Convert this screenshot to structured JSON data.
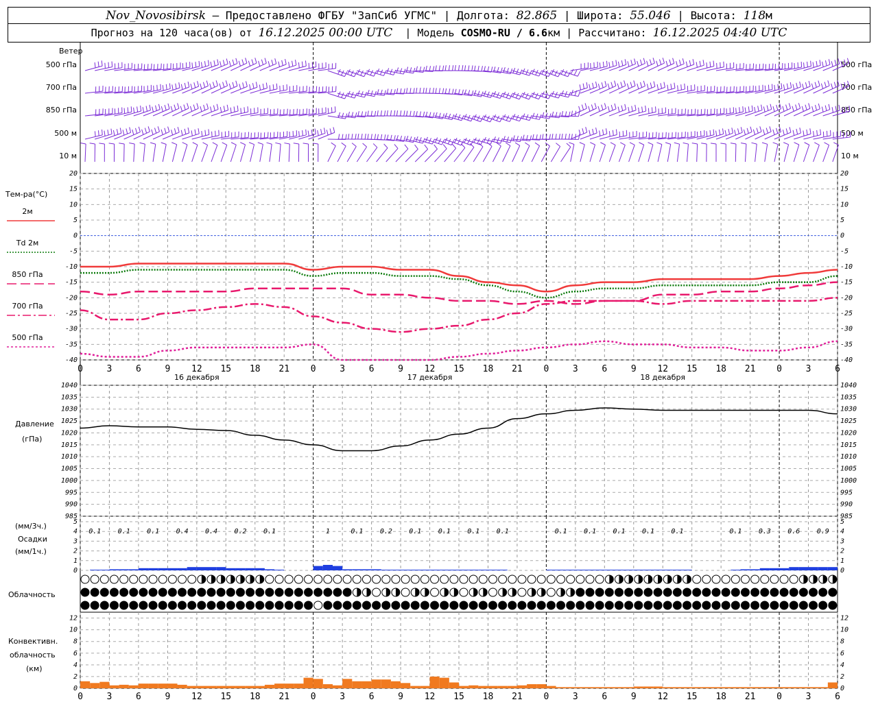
{
  "header": {
    "station": "Nov_Novosibirsk",
    "provider": "– Предоставлено ФГБУ \"ЗапСиб УГМС\"",
    "lon_label": "Долгота:",
    "lon_value": "82.865",
    "lat_label": "Широта:",
    "lat_value": "55.046",
    "alt_label": "Высота:",
    "alt_value": "118",
    "alt_unit": "м",
    "forecast_label": "Прогноз на 120 часа(ов) от",
    "forecast_from": "16.12.2025 00:00 UTC",
    "model_label": "Модель",
    "model_value": "COSMO-RU / 6.6",
    "model_unit": "км",
    "calc_label": "Рассчитано:",
    "calc_value": "16.12.2025 04:40 UTC"
  },
  "labels": {
    "wind": "Ветер",
    "wind_levels": [
      "500 гПа",
      "700 гПа",
      "850 гПа",
      "500 м",
      "10  м"
    ],
    "temp": "Тем-ра(°С)",
    "pressure": "Давление",
    "pressure_unit": "(гПа)",
    "precip_3h": "(мм/3ч.)",
    "precip": "Осадки",
    "precip_1h": "(мм/1ч.)",
    "cloud": "Облачность",
    "conv1": "Конвективн.",
    "conv2": "облачность",
    "conv3": "(км)"
  },
  "colors": {
    "wind": "#7b2bd6",
    "t2m": "#f03a3a",
    "td2m": "#0a7a0a",
    "t850": "#e8186c",
    "t700": "#e8186c",
    "t500": "#e0209a",
    "zero_line": "#3a5adf",
    "pressure": "#000000",
    "precip": "#1f3fe0",
    "conv": "#f07a20"
  },
  "chart_data": [
    {
      "type": "line",
      "name": "temperature",
      "x": [
        0,
        3,
        6,
        9,
        12,
        15,
        18,
        21,
        24,
        27,
        30,
        33,
        36,
        39,
        42,
        45,
        48,
        51,
        54,
        57,
        60,
        63,
        66,
        69,
        72,
        75,
        78
      ],
      "ylim": [
        -40,
        20
      ],
      "yticks": [
        20,
        15,
        10,
        5,
        0,
        -5,
        -10,
        -15,
        -20,
        -25,
        -30,
        -35,
        -40
      ],
      "series": [
        {
          "name": "2м",
          "style": "solid",
          "values": [
            -10,
            -10,
            -9,
            -9,
            -9,
            -9,
            -9,
            -9,
            -11,
            -10,
            -10,
            -11,
            -11,
            -13,
            -15,
            -16,
            -18,
            -16,
            -15,
            -15,
            -14,
            -14,
            -14,
            -14,
            -13,
            -12,
            -11
          ]
        },
        {
          "name": "Td  2м",
          "style": "dotted",
          "values": [
            -12,
            -12,
            -11,
            -11,
            -11,
            -11,
            -11,
            -11,
            -13,
            -12,
            -12,
            -13,
            -13,
            -14,
            -16,
            -18,
            -20,
            -18,
            -17,
            -17,
            -16,
            -16,
            -16,
            -16,
            -15,
            -15,
            -13
          ]
        },
        {
          "name": "850 гПа",
          "style": "dashed",
          "values": [
            -18,
            -19,
            -18,
            -18,
            -18,
            -18,
            -17,
            -17,
            -17,
            -17,
            -19,
            -19,
            -20,
            -21,
            -21,
            -22,
            -21,
            -22,
            -21,
            -21,
            -19,
            -19,
            -18,
            -18,
            -17,
            -16,
            -15
          ]
        },
        {
          "name": "700 гПа",
          "style": "dashdot",
          "values": [
            -24,
            -27,
            -27,
            -25,
            -24,
            -23,
            -22,
            -23,
            -26,
            -28,
            -30,
            -31,
            -30,
            -29,
            -27,
            -25,
            -22,
            -21,
            -21,
            -21,
            -22,
            -21,
            -21,
            -21,
            -21,
            -21,
            -20
          ]
        },
        {
          "name": "500 гПа",
          "style": "shortdash",
          "values": [
            -38,
            -39,
            -39,
            -37,
            -36,
            -36,
            -36,
            -36,
            -35,
            -40,
            -41,
            -42,
            -41,
            -39,
            -38,
            -37,
            -36,
            -35,
            -34,
            -35,
            -35,
            -36,
            -36,
            -37,
            -37,
            -36,
            -34
          ]
        }
      ],
      "xticks": [
        "0",
        "3",
        "6",
        "9",
        "12",
        "15",
        "18",
        "21",
        "0",
        "3",
        "6",
        "9",
        "12",
        "15",
        "18",
        "21",
        "0",
        "3",
        "6",
        "9",
        "12",
        "15",
        "18",
        "21",
        "0",
        "3",
        "6"
      ],
      "days": [
        "16 декабря",
        "17 декабря",
        "18 декабря"
      ]
    },
    {
      "type": "line",
      "name": "pressure",
      "x": [
        0,
        3,
        6,
        9,
        12,
        15,
        18,
        21,
        24,
        27,
        30,
        33,
        36,
        39,
        42,
        45,
        48,
        51,
        54,
        57,
        60,
        63,
        66,
        69,
        72,
        75,
        78
      ],
      "ylim": [
        985,
        1040
      ],
      "yticks": [
        1040,
        1035,
        1030,
        1025,
        1020,
        1015,
        1010,
        1005,
        1000,
        995,
        990,
        985
      ],
      "values": [
        1022,
        1023,
        1022.5,
        1022.5,
        1021.5,
        1021,
        1019,
        1017,
        1015,
        1012.5,
        1012.5,
        1014.5,
        1017,
        1019.5,
        1022,
        1026,
        1028,
        1029.5,
        1030.5,
        1030,
        1029.5,
        1029.5,
        1029.5,
        1029.5,
        1029.5,
        1029.5,
        1028
      ]
    },
    {
      "type": "bar",
      "name": "precipitation",
      "ylim": [
        0,
        5
      ],
      "yticks": [
        5,
        4,
        3,
        2,
        1,
        0
      ],
      "labels_3h": [
        {
          "x": 1.5,
          "text": "0.1"
        },
        {
          "x": 4.5,
          "text": "0.1"
        },
        {
          "x": 7.5,
          "text": "0.1"
        },
        {
          "x": 10.5,
          "text": "0.4"
        },
        {
          "x": 13.5,
          "text": "0.4"
        },
        {
          "x": 16.5,
          "text": "0.2"
        },
        {
          "x": 19.5,
          "text": "0.1"
        },
        {
          "x": 25.5,
          "text": "1"
        },
        {
          "x": 28.5,
          "text": "0.1"
        },
        {
          "x": 31.5,
          "text": "0.2"
        },
        {
          "x": 34.5,
          "text": "0.1"
        },
        {
          "x": 37.5,
          "text": "0.1"
        },
        {
          "x": 40.5,
          "text": "0.1"
        },
        {
          "x": 43.5,
          "text": "0.1"
        },
        {
          "x": 49.5,
          "text": "0.1"
        },
        {
          "x": 52.5,
          "text": "0.1"
        },
        {
          "x": 55.5,
          "text": "0.1"
        },
        {
          "x": 58.5,
          "text": "0.1"
        },
        {
          "x": 61.5,
          "text": "0.1"
        },
        {
          "x": 67.5,
          "text": "0.1"
        },
        {
          "x": 70.5,
          "text": "0.3"
        },
        {
          "x": 73.5,
          "text": "0.6"
        },
        {
          "x": 76.5,
          "text": "0.9"
        }
      ],
      "hourly": [
        0,
        0.05,
        0.05,
        0.1,
        0.1,
        0.1,
        0.2,
        0.2,
        0.2,
        0.2,
        0.2,
        0.3,
        0.3,
        0.3,
        0.3,
        0.2,
        0.2,
        0.2,
        0.2,
        0.1,
        0.05,
        0,
        0,
        0,
        0.4,
        0.5,
        0.4,
        0.1,
        0.1,
        0.1,
        0.1,
        0.05,
        0.05,
        0.05,
        0.05,
        0.05,
        0.05,
        0.05,
        0.05,
        0.05,
        0.05,
        0.05,
        0.05,
        0.05,
        0,
        0,
        0,
        0,
        0.05,
        0.05,
        0.05,
        0.05,
        0.05,
        0.05,
        0.05,
        0.05,
        0.05,
        0.05,
        0.05,
        0.05,
        0.05,
        0.05,
        0.05,
        0,
        0,
        0,
        0,
        0.05,
        0.1,
        0.1,
        0.2,
        0.2,
        0.2,
        0.3,
        0.3,
        0.3,
        0.3,
        0.3
      ]
    },
    {
      "type": "bar",
      "name": "convective_cloud",
      "ylim": [
        0,
        13
      ],
      "yticks": [
        12,
        10,
        8,
        6,
        4,
        2,
        0
      ],
      "values": [
        1.2,
        0.9,
        1.1,
        0.5,
        0.6,
        0.5,
        0.8,
        0.8,
        0.8,
        0.8,
        0.6,
        0.4,
        0.4,
        0.4,
        0.4,
        0.4,
        0.4,
        0.4,
        0.4,
        0.6,
        0.8,
        0.8,
        0.8,
        1.8,
        1.6,
        0.7,
        0.5,
        1.6,
        1.2,
        1.2,
        1.5,
        1.5,
        1.2,
        0.9,
        0.4,
        0.4,
        2.0,
        1.8,
        1.0,
        0.4,
        0.5,
        0.4,
        0.4,
        0.4,
        0.4,
        0.5,
        0.7,
        0.7,
        0.4,
        0.2,
        0.2,
        0.2,
        0.2,
        0.2,
        0.2,
        0.2,
        0.2,
        0.3,
        0.3,
        0.3,
        0.2,
        0.2,
        0.2,
        0.2,
        0.2,
        0.2,
        0.2,
        0.2,
        0.2,
        0.2,
        0.2,
        0.2,
        0.2,
        0.2,
        0.2,
        0.2,
        0.2,
        1.0
      ]
    }
  ]
}
